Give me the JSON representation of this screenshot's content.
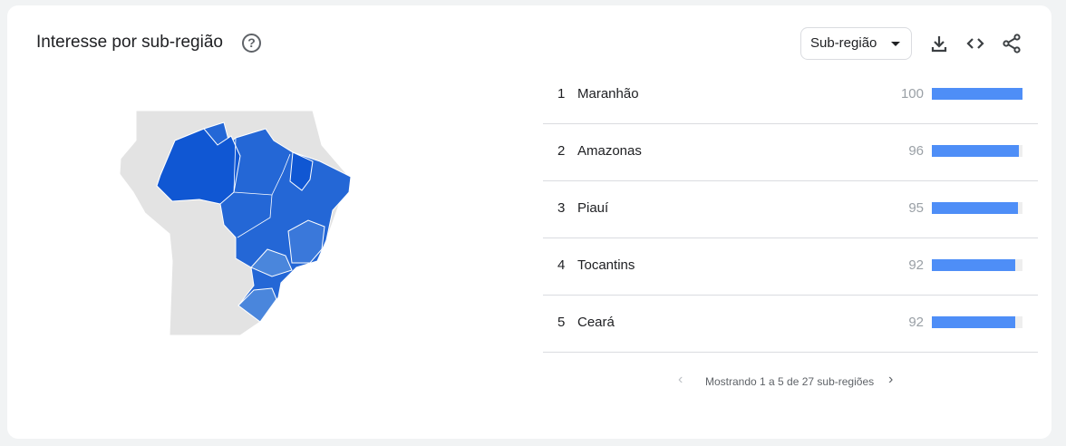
{
  "header": {
    "title": "Interesse por sub-região",
    "help_icon": "help-circle-icon",
    "select_value": "Sub-região"
  },
  "actions": [
    "download-icon",
    "embed-code-icon",
    "share-icon"
  ],
  "colors": {
    "bar": "#4e8ef7",
    "map_high": "#1057d3",
    "map_mid": "#2467d6",
    "map_low": "#4a86dc",
    "land": "#e3e3e3"
  },
  "ranking": [
    {
      "rank": "1",
      "name": "Maranhão",
      "value": 100
    },
    {
      "rank": "2",
      "name": "Amazonas",
      "value": 96
    },
    {
      "rank": "3",
      "name": "Piauí",
      "value": 95
    },
    {
      "rank": "4",
      "name": "Tocantins",
      "value": 92
    },
    {
      "rank": "5",
      "name": "Ceará",
      "value": 92
    }
  ],
  "pagination": {
    "text": "Mostrando 1 a 5 de 27 sub-regiões"
  }
}
